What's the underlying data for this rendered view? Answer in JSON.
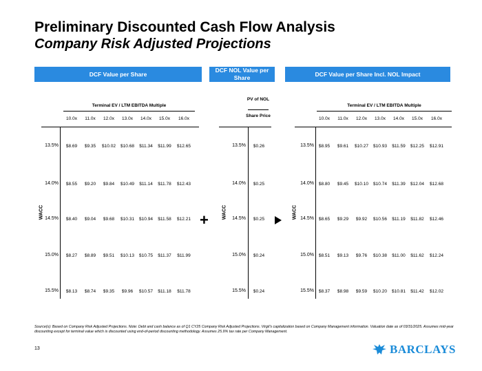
{
  "title": "Preliminary Discounted Cash Flow Analysis",
  "subtitle": "Company Risk Adjusted Projections",
  "panels": {
    "left": {
      "header": "DCF Value per Share",
      "subheader": "Terminal EV / LTM EBITDA Multiple"
    },
    "middle": {
      "header": "DCF NOL Value per Share",
      "pv_label": "PV of NOL",
      "share_label": "Share Price"
    },
    "right": {
      "header": "DCF Value per Share Incl. NOL Impact",
      "subheader": "Terminal EV / LTM EBITDA Multiple"
    }
  },
  "axis_label": "WACC",
  "operator": "+",
  "multiples": [
    "10.0x",
    "11.0x",
    "12.0x",
    "13.0x",
    "14.0x",
    "15.0x",
    "16.0x"
  ],
  "wacc_rates": [
    "13.5%",
    "14.0%",
    "14.5%",
    "15.0%",
    "15.5%"
  ],
  "dcf_values": [
    [
      "$8.69",
      "$9.35",
      "$10.02",
      "$10.68",
      "$11.34",
      "$11.99",
      "$12.65"
    ],
    [
      "$8.55",
      "$9.20",
      "$9.84",
      "$10.49",
      "$11.14",
      "$11.78",
      "$12.43"
    ],
    [
      "$8.40",
      "$9.04",
      "$9.68",
      "$10.31",
      "$10.94",
      "$11.58",
      "$12.21"
    ],
    [
      "$8.27",
      "$8.89",
      "$9.51",
      "$10.13",
      "$10.75",
      "$11.37",
      "$11.99"
    ],
    [
      "$8.13",
      "$8.74",
      "$9.35",
      "$9.96",
      "$10.57",
      "$11.18",
      "$11.78"
    ]
  ],
  "nol_values": [
    "$0.26",
    "$0.25",
    "$0.25",
    "$0.24",
    "$0.24"
  ],
  "combined_values": [
    [
      "$8.95",
      "$9.61",
      "$10.27",
      "$10.93",
      "$11.59",
      "$12.25",
      "$12.91"
    ],
    [
      "$8.80",
      "$9.45",
      "$10.10",
      "$10.74",
      "$11.39",
      "$12.04",
      "$12.68"
    ],
    [
      "$8.65",
      "$9.29",
      "$9.92",
      "$10.56",
      "$11.19",
      "$11.82",
      "$12.46"
    ],
    [
      "$8.51",
      "$9.13",
      "$9.76",
      "$10.38",
      "$11.00",
      "$11.62",
      "$12.24"
    ],
    [
      "$8.37",
      "$8.98",
      "$9.59",
      "$10.20",
      "$10.81",
      "$11.42",
      "$12.02"
    ]
  ],
  "footnote": "Source(s): Based on Company Risk Adjusted Projections. Note: Debt and cash balance as of Q1 CY25 Company Risk Adjusted Projections. Virgil’s capitalization based on Company Management information. Valuation date as of 03/31/2025. Assumes mid-year discounting except for terminal value which is discounted using end-of-period discounting methodology. Assumes 25.9% tax rate per Company Management.",
  "page_number": "13",
  "logo_text": "BARCLAYS",
  "colors": {
    "header_bg": "#2a8ae0",
    "logo": "#1a8bd8"
  }
}
